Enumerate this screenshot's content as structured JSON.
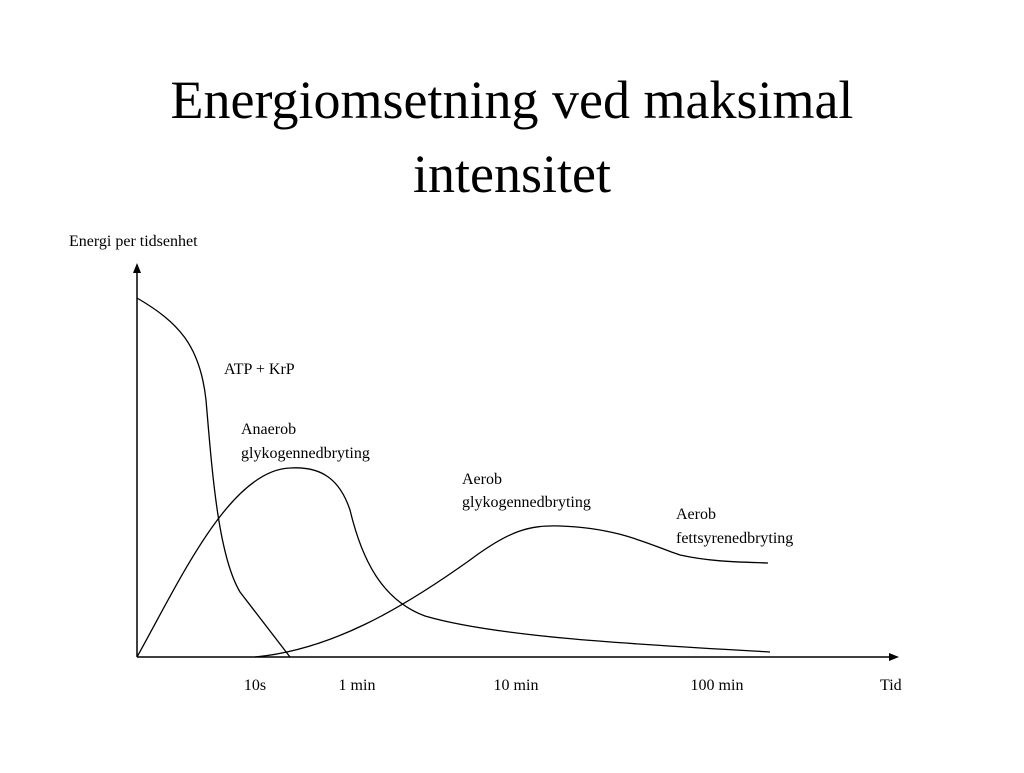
{
  "title": {
    "lines": [
      "Energiomsetning ved maksimal",
      "intensitet"
    ]
  },
  "diagram": {
    "y_axis_label": "Energi per tidsenhet",
    "x_axis_label": "Tid",
    "x_ticks": [
      "10s",
      "1 min",
      "10 min",
      "100 min"
    ],
    "curve_labels": [
      {
        "lines": [
          "ATP + KrP"
        ]
      },
      {
        "lines": [
          "Anaerob",
          "glykogennedbryting"
        ]
      },
      {
        "lines": [
          "Aerob",
          "glykogennedbryting"
        ]
      },
      {
        "lines": [
          "Aerob",
          "fettsyrenedbryting"
        ]
      }
    ]
  }
}
